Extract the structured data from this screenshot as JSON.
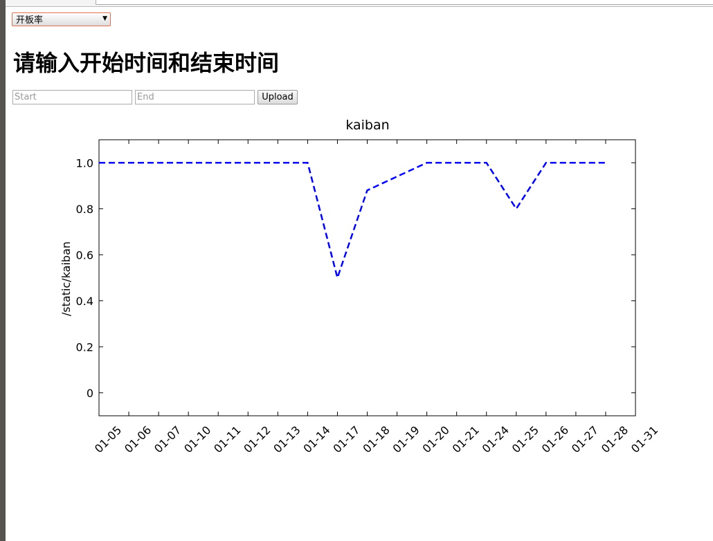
{
  "form": {
    "select": "开板率",
    "heading": "请输入开始时间和结束时间",
    "start_placeholder": "Start",
    "end_placeholder": "End",
    "button": "Upload"
  },
  "chart_data": {
    "type": "line",
    "title": "kaiban",
    "y_label": "/static/kaiban",
    "categories": [
      "01-05",
      "01-06",
      "01-07",
      "01-10",
      "01-11",
      "01-12",
      "01-13",
      "01-14",
      "01-17",
      "01-18",
      "01-19",
      "01-20",
      "01-21",
      "01-24",
      "01-25",
      "01-26",
      "01-27",
      "01-28",
      "01-31"
    ],
    "series": [
      {
        "name": "kaiban",
        "color": "#0000ff",
        "values": [
          1.0,
          1.0,
          1.0,
          1.0,
          1.0,
          1.0,
          1.0,
          1.0,
          0.5,
          0.88,
          0.94,
          1.0,
          1.0,
          1.0,
          0.8,
          1.0,
          1.0,
          1.0,
          null
        ]
      }
    ],
    "ylim": [
      -0.1,
      1.1
    ],
    "yticks": [
      0.0,
      0.2,
      0.4,
      0.6,
      0.8,
      {
        "value": 1.0,
        "label": "1.0"
      }
    ],
    "grid": false
  }
}
